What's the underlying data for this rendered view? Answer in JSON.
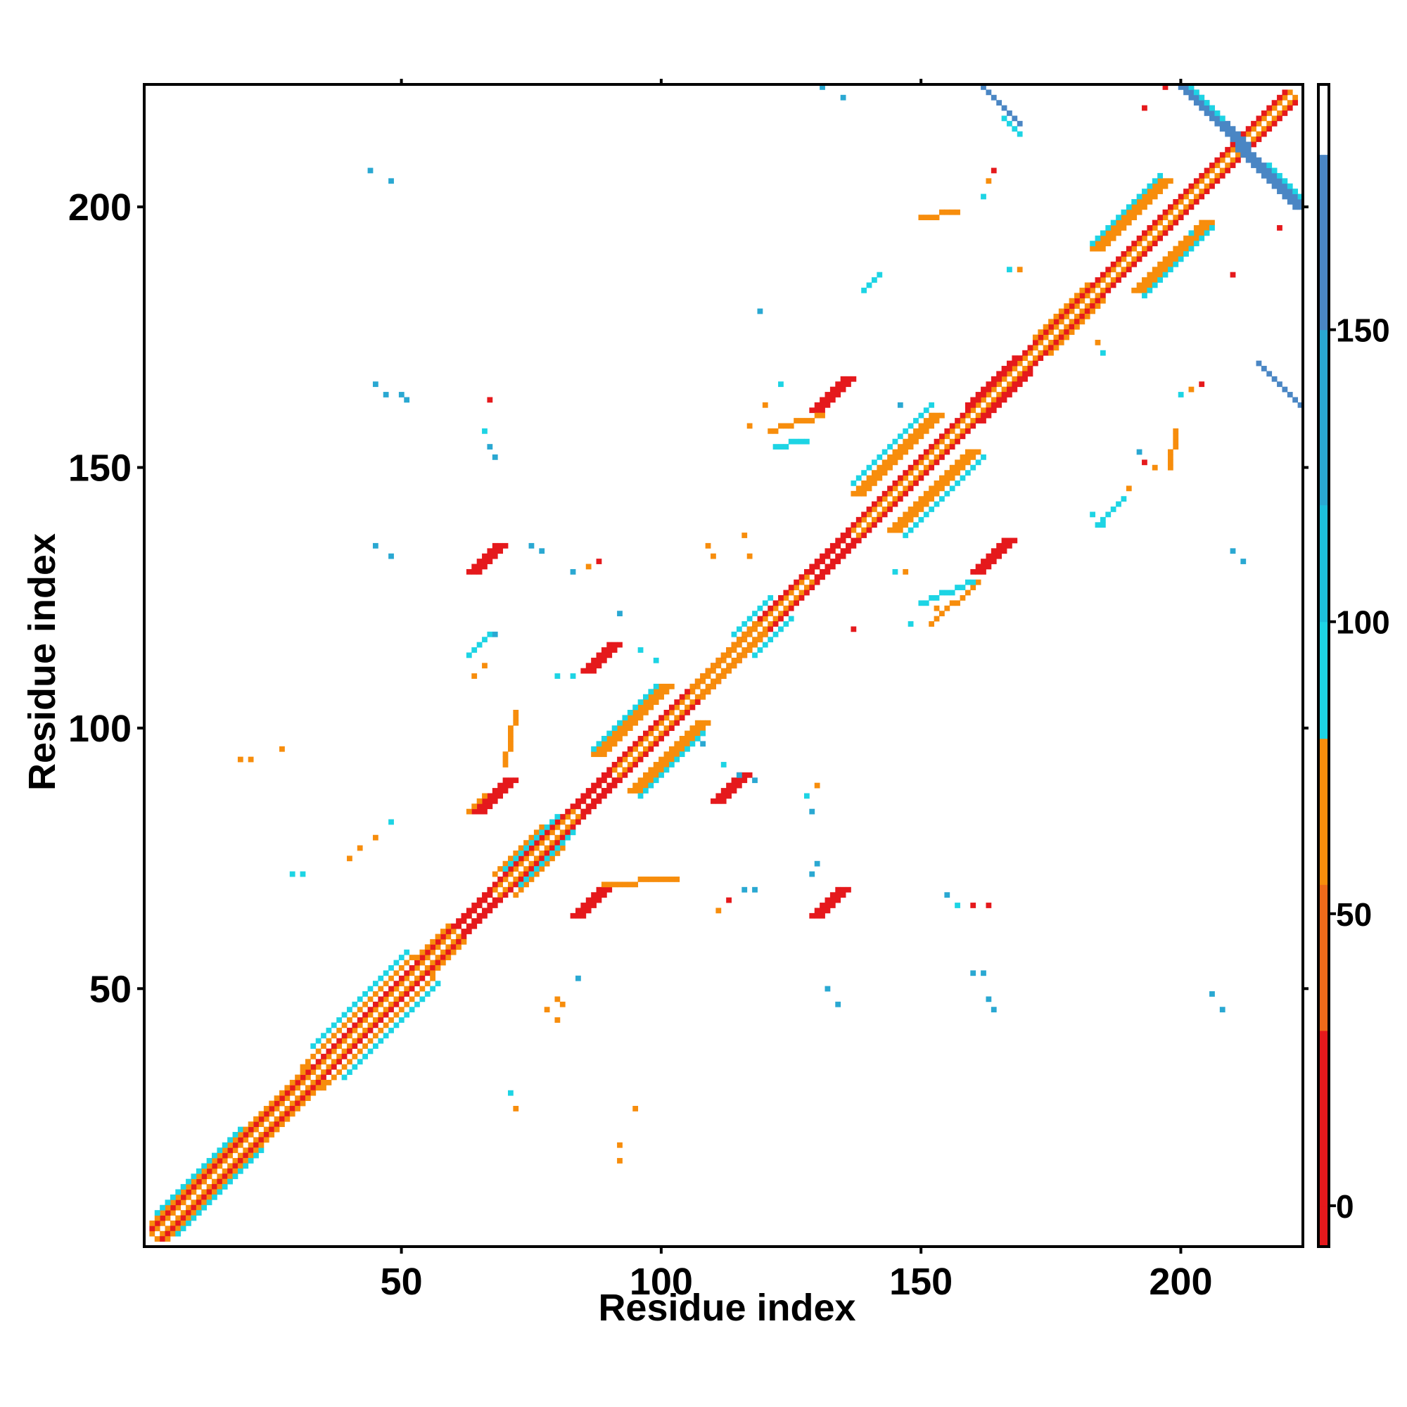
{
  "chart_data": {
    "type": "heatmap",
    "title": "",
    "xlabel": "Residue index",
    "ylabel": "Residue index",
    "xlim": [
      1,
      223
    ],
    "ylim": [
      1,
      223
    ],
    "x_ticks": [
      50,
      100,
      150,
      200
    ],
    "y_ticks": [
      50,
      100,
      150,
      200
    ],
    "grid": false,
    "colorbar": {
      "range": [
        -7,
        192
      ],
      "ticks": [
        0,
        50,
        100,
        150
      ],
      "bands": [
        {
          "from": -7,
          "to": 0,
          "color": "#e5191c"
        },
        {
          "from": 0,
          "to": 30,
          "color": "#e5191c"
        },
        {
          "from": 30,
          "to": 55,
          "color": "#ef6a1a"
        },
        {
          "from": 55,
          "to": 80,
          "color": "#f78d0c"
        },
        {
          "from": 80,
          "to": 100,
          "color": "#1dd4e4"
        },
        {
          "from": 100,
          "to": 120,
          "color": "#1dbfdc"
        },
        {
          "from": 120,
          "to": 150,
          "color": "#2aa8d2"
        },
        {
          "from": 150,
          "to": 180,
          "color": "#4a86c4"
        },
        {
          "from": 180,
          "to": 192,
          "color": "#ffffff"
        }
      ]
    },
    "segments": [
      {
        "x0": 2,
        "y0": 2,
        "x1": 222,
        "y1": 222,
        "w": 1.2,
        "c": "#ffffff"
      },
      {
        "x0": 3,
        "y0": 2,
        "x1": 222,
        "y1": 221,
        "w": 1,
        "c": "#f78d0c"
      },
      {
        "x0": 2,
        "y0": 3,
        "x1": 221,
        "y1": 222,
        "w": 1,
        "c": "#f78d0c"
      },
      {
        "x0": 4,
        "y0": 2,
        "x1": 222,
        "y1": 220,
        "w": 1,
        "c": "#e5191c"
      },
      {
        "x0": 2,
        "y0": 4,
        "x1": 220,
        "y1": 222,
        "w": 1,
        "c": "#e5191c"
      },
      {
        "x0": 5,
        "y0": 2,
        "x1": 22,
        "y1": 19,
        "w": 1.5,
        "c": "#f78d0c"
      },
      {
        "x0": 2,
        "y0": 5,
        "x1": 19,
        "y1": 22,
        "w": 1.5,
        "c": "#f78d0c"
      },
      {
        "x0": 7,
        "y0": 3,
        "x1": 23,
        "y1": 19,
        "w": 1.2,
        "c": "#1dd4e4"
      },
      {
        "x0": 3,
        "y0": 7,
        "x1": 19,
        "y1": 23,
        "w": 1.2,
        "c": "#1dd4e4"
      },
      {
        "x0": 22,
        "y0": 19,
        "x1": 35,
        "y1": 32,
        "w": 1.2,
        "c": "#f78d0c"
      },
      {
        "x0": 19,
        "y0": 22,
        "x1": 32,
        "y1": 35,
        "w": 1.2,
        "c": "#f78d0c"
      },
      {
        "x0": 35,
        "y0": 31,
        "x1": 56,
        "y1": 52,
        "w": 1.5,
        "c": "#f78d0c"
      },
      {
        "x0": 31,
        "y0": 35,
        "x1": 52,
        "y1": 56,
        "w": 1.5,
        "c": "#f78d0c"
      },
      {
        "x0": 39,
        "y0": 33,
        "x1": 57,
        "y1": 51,
        "w": 1.2,
        "c": "#1dd4e4"
      },
      {
        "x0": 33,
        "y0": 39,
        "x1": 51,
        "y1": 57,
        "w": 1.2,
        "c": "#1dd4e4"
      },
      {
        "x0": 56,
        "y0": 53,
        "x1": 62,
        "y1": 59,
        "w": 1.2,
        "c": "#f78d0c"
      },
      {
        "x0": 53,
        "y0": 56,
        "x1": 59,
        "y1": 62,
        "w": 1.2,
        "c": "#f78d0c"
      },
      {
        "x0": 62,
        "y0": 61,
        "x1": 68,
        "y1": 67,
        "w": 1.5,
        "c": "#e5191c"
      },
      {
        "x0": 61,
        "y0": 62,
        "x1": 67,
        "y1": 68,
        "w": 1.5,
        "c": "#e5191c"
      },
      {
        "x0": 72,
        "y0": 68,
        "x1": 81,
        "y1": 77,
        "w": 1.5,
        "c": "#f78d0c"
      },
      {
        "x0": 68,
        "y0": 72,
        "x1": 77,
        "y1": 81,
        "w": 1.5,
        "c": "#f78d0c"
      },
      {
        "x0": 73,
        "y0": 70,
        "x1": 83,
        "y1": 80,
        "w": 1,
        "c": "#1dd4e4"
      },
      {
        "x0": 70,
        "y0": 73,
        "x1": 80,
        "y1": 83,
        "w": 1,
        "c": "#1dd4e4"
      },
      {
        "x0": 85,
        "y0": 84,
        "x1": 91,
        "y1": 90,
        "w": 1.5,
        "c": "#e5191c"
      },
      {
        "x0": 84,
        "y0": 85,
        "x1": 90,
        "y1": 91,
        "w": 1.5,
        "c": "#e5191c"
      },
      {
        "x0": 95,
        "y0": 88,
        "x1": 108,
        "y1": 101,
        "w": 2,
        "c": "#f78d0c"
      },
      {
        "x0": 88,
        "y0": 95,
        "x1": 101,
        "y1": 108,
        "w": 2,
        "c": "#f78d0c"
      },
      {
        "x0": 96,
        "y0": 87,
        "x1": 108,
        "y1": 99,
        "w": 1.2,
        "c": "#1dd4e4"
      },
      {
        "x0": 87,
        "y0": 96,
        "x1": 99,
        "y1": 108,
        "w": 1.2,
        "c": "#1dd4e4"
      },
      {
        "x0": 108,
        "y0": 106,
        "x1": 120,
        "y1": 118,
        "w": 1.2,
        "c": "#f78d0c"
      },
      {
        "x0": 106,
        "y0": 108,
        "x1": 118,
        "y1": 120,
        "w": 1.2,
        "c": "#f78d0c"
      },
      {
        "x0": 118,
        "y0": 114,
        "x1": 125,
        "y1": 121,
        "w": 1.2,
        "c": "#1dd4e4"
      },
      {
        "x0": 114,
        "y0": 118,
        "x1": 121,
        "y1": 125,
        "w": 1.2,
        "c": "#1dd4e4"
      },
      {
        "x0": 130,
        "y0": 129,
        "x1": 137,
        "y1": 136,
        "w": 1.5,
        "c": "#e5191c"
      },
      {
        "x0": 129,
        "y0": 130,
        "x1": 136,
        "y1": 137,
        "w": 1.5,
        "c": "#e5191c"
      },
      {
        "x0": 145,
        "y0": 138,
        "x1": 160,
        "y1": 153,
        "w": 2.2,
        "c": "#f78d0c"
      },
      {
        "x0": 138,
        "y0": 145,
        "x1": 153,
        "y1": 160,
        "w": 2.2,
        "c": "#f78d0c"
      },
      {
        "x0": 147,
        "y0": 137,
        "x1": 162,
        "y1": 152,
        "w": 1.3,
        "c": "#1dd4e4"
      },
      {
        "x0": 137,
        "y0": 147,
        "x1": 152,
        "y1": 162,
        "w": 1.3,
        "c": "#1dd4e4"
      },
      {
        "x0": 162,
        "y0": 159,
        "x1": 171,
        "y1": 168,
        "w": 1.3,
        "c": "#e5191c"
      },
      {
        "x0": 159,
        "y0": 162,
        "x1": 168,
        "y1": 171,
        "w": 1.3,
        "c": "#e5191c"
      },
      {
        "x0": 175,
        "y0": 172,
        "x1": 185,
        "y1": 182,
        "w": 1.3,
        "c": "#f78d0c"
      },
      {
        "x0": 172,
        "y0": 175,
        "x1": 182,
        "y1": 185,
        "w": 1.3,
        "c": "#f78d0c"
      },
      {
        "x0": 192,
        "y0": 184,
        "x1": 205,
        "y1": 197,
        "w": 2,
        "c": "#f78d0c"
      },
      {
        "x0": 184,
        "y0": 192,
        "x1": 197,
        "y1": 205,
        "w": 2,
        "c": "#f78d0c"
      },
      {
        "x0": 193,
        "y0": 183,
        "x1": 206,
        "y1": 196,
        "w": 1.2,
        "c": "#1dd4e4"
      },
      {
        "x0": 183,
        "y0": 193,
        "x1": 196,
        "y1": 206,
        "w": 1.2,
        "c": "#1dd4e4"
      },
      {
        "x0": 201,
        "y0": 223,
        "x1": 223,
        "y1": 200,
        "w": 2,
        "c": "#4a86c4"
      },
      {
        "x0": 201,
        "y0": 224,
        "x1": 208,
        "y1": 217,
        "w": 1,
        "c": "#1dd4e4"
      },
      {
        "x0": 217,
        "y0": 208,
        "x1": 223,
        "y1": 202,
        "w": 1,
        "c": "#1dd4e4"
      },
      {
        "x0": 162,
        "y0": 223,
        "x1": 169,
        "y1": 216,
        "w": 1.8,
        "c": "#4a86c4"
      },
      {
        "x0": 166,
        "y0": 217,
        "x1": 169,
        "y1": 214,
        "w": 1,
        "c": "#1dd4e4"
      },
      {
        "x0": 215,
        "y0": 170,
        "x1": 223,
        "y1": 162,
        "w": 1.8,
        "c": "#4a86c4"
      },
      {
        "x0": 65,
        "y0": 84,
        "x1": 71,
        "y1": 90,
        "w": 2.5,
        "c": "#e5191c"
      },
      {
        "x0": 63,
        "y0": 84,
        "x1": 66,
        "y1": 87,
        "w": 1.2,
        "c": "#f78d0c"
      },
      {
        "x0": 70,
        "y0": 93,
        "x1": 72,
        "y1": 103,
        "w": 1.2,
        "c": "#f78d0c"
      },
      {
        "x0": 84,
        "y0": 64,
        "x1": 89,
        "y1": 69,
        "w": 2.5,
        "c": "#e5191c"
      },
      {
        "x0": 89,
        "y0": 70,
        "x1": 103,
        "y1": 71,
        "w": 1.2,
        "c": "#f78d0c"
      },
      {
        "x0": 64,
        "y0": 130,
        "x1": 69,
        "y1": 135,
        "w": 2.5,
        "c": "#e5191c"
      },
      {
        "x0": 130,
        "y0": 64,
        "x1": 135,
        "y1": 69,
        "w": 2.5,
        "c": "#e5191c"
      },
      {
        "x0": 86,
        "y0": 111,
        "x1": 91,
        "y1": 116,
        "w": 2.5,
        "c": "#e5191c"
      },
      {
        "x0": 111,
        "y0": 86,
        "x1": 116,
        "y1": 91,
        "w": 2.5,
        "c": "#e5191c"
      },
      {
        "x0": 130,
        "y0": 161,
        "x1": 136,
        "y1": 167,
        "w": 2.5,
        "c": "#e5191c"
      },
      {
        "x0": 161,
        "y0": 130,
        "x1": 167,
        "y1": 136,
        "w": 2.5,
        "c": "#e5191c"
      },
      {
        "x0": 121,
        "y0": 157,
        "x1": 131,
        "y1": 160,
        "w": 1.2,
        "c": "#f78d0c"
      },
      {
        "x0": 152,
        "y0": 120,
        "x1": 161,
        "y1": 128,
        "w": 1.2,
        "c": "#f78d0c"
      },
      {
        "x0": 150,
        "y0": 124,
        "x1": 160,
        "y1": 128,
        "w": 1,
        "c": "#1dd4e4"
      },
      {
        "x0": 150,
        "y0": 198,
        "x1": 157,
        "y1": 199,
        "w": 1.2,
        "c": "#f78d0c"
      },
      {
        "x0": 198,
        "y0": 150,
        "x1": 199,
        "y1": 157,
        "w": 1.2,
        "c": "#f78d0c"
      },
      {
        "x0": 139,
        "y0": 184,
        "x1": 142,
        "y1": 187,
        "w": 1.5,
        "c": "#1dd4e4"
      },
      {
        "x0": 184,
        "y0": 139,
        "x1": 187,
        "y1": 142,
        "w": 1.5,
        "c": "#1dd4e4"
      },
      {
        "x0": 122,
        "y0": 154,
        "x1": 128,
        "y1": 155,
        "w": 1,
        "c": "#1dd4e4"
      },
      {
        "x0": 63,
        "y0": 114,
        "x1": 67,
        "y1": 118,
        "w": 1,
        "c": "#1dd4e4"
      }
    ],
    "points": [
      [
        27,
        96,
        "#f78d0c"
      ],
      [
        19,
        94,
        "#f78d0c"
      ],
      [
        21,
        94,
        "#f78d0c"
      ],
      [
        29,
        72,
        "#1dd4e4"
      ],
      [
        31,
        72,
        "#1dd4e4"
      ],
      [
        40,
        75,
        "#f78d0c"
      ],
      [
        42,
        77,
        "#f78d0c"
      ],
      [
        45,
        79,
        "#f78d0c"
      ],
      [
        48,
        82,
        "#1dd4e4"
      ],
      [
        45,
        135,
        "#2aa8d2"
      ],
      [
        48,
        133,
        "#2aa8d2"
      ],
      [
        45,
        166,
        "#2aa8d2"
      ],
      [
        47,
        164,
        "#2aa8d2"
      ],
      [
        50,
        164,
        "#2aa8d2"
      ],
      [
        51,
        163,
        "#2aa8d2"
      ],
      [
        44,
        207,
        "#2aa8d2"
      ],
      [
        48,
        205,
        "#2aa8d2"
      ],
      [
        131,
        223,
        "#2aa8d2"
      ],
      [
        135,
        221,
        "#2aa8d2"
      ],
      [
        67,
        163,
        "#e5191c"
      ],
      [
        66,
        157,
        "#1dd4e4"
      ],
      [
        67,
        154,
        "#2aa8d2"
      ],
      [
        68,
        152,
        "#2aa8d2"
      ],
      [
        83,
        130,
        "#2aa8d2"
      ],
      [
        86,
        131,
        "#f78d0c"
      ],
      [
        88,
        132,
        "#e5191c"
      ],
      [
        75,
        135,
        "#2aa8d2"
      ],
      [
        77,
        134,
        "#2aa8d2"
      ],
      [
        68,
        118,
        "#2aa8d2"
      ],
      [
        66,
        112,
        "#f78d0c"
      ],
      [
        64,
        110,
        "#f78d0c"
      ],
      [
        80,
        110,
        "#1dd4e4"
      ],
      [
        83,
        110,
        "#1dd4e4"
      ],
      [
        96,
        115,
        "#1dd4e4"
      ],
      [
        99,
        113,
        "#1dd4e4"
      ],
      [
        92,
        122,
        "#2aa8d2"
      ],
      [
        119,
        180,
        "#2aa8d2"
      ],
      [
        120,
        162,
        "#f78d0c"
      ],
      [
        117,
        158,
        "#f78d0c"
      ],
      [
        123,
        166,
        "#1dd4e4"
      ],
      [
        109,
        135,
        "#f78d0c"
      ],
      [
        110,
        133,
        "#f78d0c"
      ],
      [
        116,
        137,
        "#f78d0c"
      ],
      [
        117,
        133,
        "#f78d0c"
      ],
      [
        137,
        119,
        "#e5191c"
      ],
      [
        148,
        120,
        "#1dd4e4"
      ],
      [
        153,
        123,
        "#f78d0c"
      ],
      [
        129,
        72,
        "#2aa8d2"
      ],
      [
        130,
        74,
        "#2aa8d2"
      ],
      [
        128,
        87,
        "#1dd4e4"
      ],
      [
        129,
        84,
        "#2aa8d2"
      ],
      [
        130,
        89,
        "#f78d0c"
      ],
      [
        108,
        97,
        "#2aa8d2"
      ],
      [
        112,
        93,
        "#1dd4e4"
      ],
      [
        115,
        91,
        "#2aa8d2"
      ],
      [
        118,
        90,
        "#2aa8d2"
      ],
      [
        111,
        65,
        "#f78d0c"
      ],
      [
        113,
        67,
        "#e5191c"
      ],
      [
        116,
        69,
        "#2aa8d2"
      ],
      [
        118,
        69,
        "#2aa8d2"
      ],
      [
        155,
        68,
        "#2aa8d2"
      ],
      [
        157,
        66,
        "#1dd4e4"
      ],
      [
        160,
        66,
        "#e5191c"
      ],
      [
        163,
        66,
        "#e5191c"
      ],
      [
        160,
        53,
        "#2aa8d2"
      ],
      [
        162,
        53,
        "#2aa8d2"
      ],
      [
        163,
        48,
        "#2aa8d2"
      ],
      [
        164,
        46,
        "#2aa8d2"
      ],
      [
        132,
        50,
        "#2aa8d2"
      ],
      [
        134,
        47,
        "#2aa8d2"
      ],
      [
        84,
        52,
        "#2aa8d2"
      ],
      [
        78,
        46,
        "#f78d0c"
      ],
      [
        80,
        44,
        "#f78d0c"
      ],
      [
        80,
        48,
        "#f78d0c"
      ],
      [
        81,
        47,
        "#f78d0c"
      ],
      [
        71,
        30,
        "#1dd4e4"
      ],
      [
        72,
        27,
        "#f78d0c"
      ],
      [
        95,
        27,
        "#f78d0c"
      ],
      [
        92,
        20,
        "#f78d0c"
      ],
      [
        92,
        17,
        "#f78d0c"
      ],
      [
        206,
        49,
        "#2aa8d2"
      ],
      [
        208,
        46,
        "#2aa8d2"
      ],
      [
        164,
        207,
        "#e5191c"
      ],
      [
        163,
        205,
        "#f78d0c"
      ],
      [
        162,
        202,
        "#1dd4e4"
      ],
      [
        167,
        188,
        "#1dd4e4"
      ],
      [
        169,
        188,
        "#f78d0c"
      ],
      [
        184,
        174,
        "#f78d0c"
      ],
      [
        185,
        172,
        "#1dd4e4"
      ],
      [
        204,
        166,
        "#e5191c"
      ],
      [
        202,
        165,
        "#f78d0c"
      ],
      [
        200,
        164,
        "#1dd4e4"
      ],
      [
        192,
        153,
        "#2aa8d2"
      ],
      [
        193,
        151,
        "#e5191c"
      ],
      [
        195,
        150,
        "#f78d0c"
      ],
      [
        190,
        146,
        "#f78d0c"
      ],
      [
        188,
        143,
        "#1dd4e4"
      ],
      [
        183,
        141,
        "#1dd4e4"
      ],
      [
        185,
        139,
        "#1dd4e4"
      ],
      [
        189,
        144,
        "#1dd4e4"
      ],
      [
        210,
        134,
        "#2aa8d2"
      ],
      [
        212,
        132,
        "#2aa8d2"
      ],
      [
        210,
        187,
        "#e5191c"
      ],
      [
        219,
        196,
        "#e5191c"
      ],
      [
        193,
        219,
        "#e5191c"
      ],
      [
        197,
        223,
        "#e5191c"
      ],
      [
        202,
        195,
        "#1dd4e4"
      ],
      [
        203,
        193,
        "#1dd4e4"
      ],
      [
        146,
        162,
        "#2aa8d2"
      ],
      [
        147,
        130,
        "#f78d0c"
      ],
      [
        145,
        130,
        "#1dd4e4"
      ]
    ]
  }
}
